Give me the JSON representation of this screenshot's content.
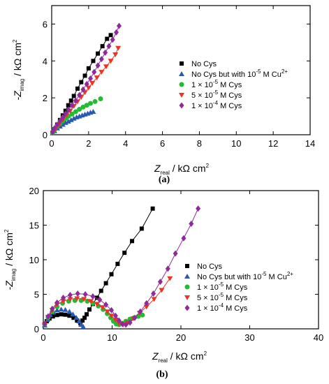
{
  "chart_data": [
    {
      "type": "scatter",
      "panel_label": "(a)",
      "xlabel": "Zreal / kΩ cm2",
      "ylabel": "-Zimag / kΩ cm2",
      "xlim": [
        0,
        14
      ],
      "ylim": [
        0,
        7
      ],
      "xticks": [
        "0",
        "2",
        "4",
        "6",
        "8",
        "10",
        "12",
        "14"
      ],
      "yticks": [
        "0",
        "2",
        "4",
        "6"
      ],
      "legend_position": "right",
      "legend": [
        "No Cys",
        "No Cys but with 10-5 M Cu2+",
        "1 × 10-5 M Cys",
        "5 × 10-5 M Cys",
        "1 × 10-4 M Cys"
      ],
      "series": [
        {
          "name": "No Cys",
          "color": "#000000",
          "marker": "square",
          "line": true,
          "x": [
            0.05,
            0.15,
            0.3,
            0.45,
            0.6,
            0.75,
            0.9,
            1.05,
            1.2,
            1.4,
            1.6,
            1.8,
            2.0,
            2.25,
            2.5,
            2.75,
            3.0,
            3.2
          ],
          "y": [
            0.1,
            0.3,
            0.55,
            0.8,
            1.05,
            1.3,
            1.6,
            1.85,
            2.1,
            2.5,
            2.85,
            3.2,
            3.6,
            4.0,
            4.4,
            4.8,
            5.2,
            5.4
          ]
        },
        {
          "name": "No Cys but with 10-5 M Cu2+",
          "color": "#2a5ab0",
          "marker": "triangle",
          "line": false,
          "x": [
            0.05,
            0.15,
            0.3,
            0.45,
            0.6,
            0.75,
            0.9,
            1.05,
            1.2,
            1.35,
            1.5,
            1.65,
            1.8,
            1.95,
            2.1,
            2.25
          ],
          "y": [
            0.08,
            0.2,
            0.35,
            0.45,
            0.55,
            0.65,
            0.72,
            0.8,
            0.88,
            0.95,
            1.0,
            1.05,
            1.1,
            1.15,
            1.2,
            1.25
          ]
        },
        {
          "name": "1 × 10-5 M Cys",
          "color": "#22bb33",
          "marker": "circle",
          "line": false,
          "x": [
            0.05,
            0.15,
            0.3,
            0.45,
            0.6,
            0.75,
            0.9,
            1.1,
            1.3,
            1.5,
            1.7,
            1.9,
            2.1,
            2.35,
            2.65
          ],
          "y": [
            0.1,
            0.25,
            0.45,
            0.6,
            0.75,
            0.88,
            1.0,
            1.12,
            1.25,
            1.38,
            1.5,
            1.6,
            1.7,
            1.8,
            1.95
          ]
        },
        {
          "name": "5 × 10-5 M Cys",
          "color": "#ee3322",
          "marker": "triangle-down",
          "line": true,
          "x": [
            0.05,
            0.2,
            0.4,
            0.6,
            0.8,
            1.0,
            1.2,
            1.4,
            1.6,
            1.8,
            2.0,
            2.2,
            2.45,
            2.7,
            2.95,
            3.2,
            3.45,
            3.6
          ],
          "y": [
            0.1,
            0.3,
            0.55,
            0.8,
            1.05,
            1.3,
            1.55,
            1.8,
            2.05,
            2.3,
            2.55,
            2.8,
            3.1,
            3.4,
            3.7,
            4.0,
            4.35,
            4.7
          ]
        },
        {
          "name": "1 × 10-4 M Cys",
          "color": "#8e2a9c",
          "marker": "diamond",
          "line": true,
          "x": [
            0.05,
            0.15,
            0.3,
            0.45,
            0.6,
            0.75,
            0.9,
            1.1,
            1.3,
            1.5,
            1.7,
            1.9,
            2.1,
            2.3,
            2.5,
            2.7,
            2.9,
            3.1,
            3.3,
            3.5,
            3.65
          ],
          "y": [
            0.15,
            0.35,
            0.55,
            0.75,
            0.95,
            1.15,
            1.35,
            1.6,
            1.85,
            2.15,
            2.45,
            2.75,
            3.05,
            3.4,
            3.75,
            4.1,
            4.45,
            4.8,
            5.15,
            5.55,
            5.9
          ]
        }
      ]
    },
    {
      "type": "scatter",
      "panel_label": "(b)",
      "xlabel": "Zreal / kΩ cm2",
      "ylabel": "-Zimag / kΩ cm2",
      "xlim": [
        0,
        40
      ],
      "ylim": [
        0,
        20
      ],
      "xticks": [
        "0",
        "10",
        "20",
        "30",
        "40"
      ],
      "yticks": [
        "0",
        "5",
        "10",
        "15",
        "20"
      ],
      "legend_position": "right",
      "legend": [
        "No Cys",
        "No Cys but with 10-5 M Cu2+",
        "1 × 10-5 M Cys",
        "5 × 10-5 M Cys",
        "1 × 10-4 M Cys"
      ],
      "series": [
        {
          "name": "No Cys",
          "color": "#000000",
          "marker": "square",
          "line": true,
          "x": [
            0.2,
            0.5,
            0.9,
            1.4,
            2.0,
            2.6,
            3.2,
            3.8,
            4.4,
            4.9,
            5.4,
            5.7,
            6.0,
            6.3,
            6.7,
            7.2,
            7.8,
            8.4,
            9.1,
            9.9,
            10.8,
            11.8,
            12.9,
            14.3,
            15.9
          ],
          "y": [
            0.5,
            1.1,
            1.5,
            1.8,
            2.0,
            2.1,
            2.05,
            1.9,
            1.6,
            1.2,
            0.8,
            1.2,
            1.6,
            2.1,
            2.8,
            3.6,
            4.5,
            5.5,
            6.6,
            7.9,
            9.4,
            11.0,
            12.7,
            14.5,
            17.4
          ]
        },
        {
          "name": "No Cys but with 10-5 M Cu2+",
          "color": "#2a5ab0",
          "marker": "triangle",
          "line": false,
          "x": [
            0.2,
            0.6,
            1.0,
            1.5,
            2.0,
            2.6,
            3.2,
            3.8,
            4.3,
            4.8,
            5.2,
            5.5,
            5.8
          ],
          "y": [
            0.5,
            1.3,
            2.0,
            2.4,
            2.7,
            2.8,
            2.75,
            2.5,
            2.1,
            1.6,
            1.1,
            0.6,
            0.3
          ]
        },
        {
          "name": "1 × 10-5 M Cys",
          "color": "#22bb33",
          "marker": "circle",
          "line": false,
          "x": [
            0.2,
            0.7,
            1.3,
            2.0,
            2.8,
            3.7,
            4.6,
            5.5,
            6.4,
            7.2,
            8.0,
            8.7,
            9.3,
            9.8,
            10.2,
            10.6,
            11.0,
            11.5,
            12.0,
            12.6,
            13.2,
            13.8,
            14.4
          ],
          "y": [
            0.6,
            1.6,
            2.5,
            3.2,
            3.7,
            4.0,
            4.1,
            4.1,
            4.0,
            3.7,
            3.3,
            2.8,
            2.2,
            1.6,
            1.1,
            0.7,
            0.6,
            0.8,
            1.1,
            1.4,
            1.6,
            1.8,
            2.0
          ]
        },
        {
          "name": "5 × 10-5 M Cys",
          "color": "#ee3322",
          "marker": "triangle-down",
          "line": true,
          "x": [
            0.2,
            0.7,
            1.3,
            2.0,
            2.9,
            3.9,
            4.9,
            5.9,
            6.9,
            7.8,
            8.6,
            9.3,
            9.9,
            10.5,
            11.0,
            11.6,
            12.3,
            13.1,
            14.0,
            15.0,
            16.1,
            17.2,
            18.4
          ],
          "y": [
            0.6,
            1.7,
            2.7,
            3.5,
            4.0,
            4.3,
            4.4,
            4.3,
            4.0,
            3.6,
            3.1,
            2.5,
            1.9,
            1.3,
            0.8,
            0.6,
            0.9,
            1.5,
            2.3,
            3.2,
            4.3,
            5.6,
            7.3
          ]
        },
        {
          "name": "1 × 10-4 M Cys",
          "color": "#8e2a9c",
          "marker": "diamond",
          "line": true,
          "x": [
            0.2,
            0.7,
            1.3,
            2.0,
            2.9,
            3.9,
            5.0,
            6.1,
            7.2,
            8.2,
            9.1,
            9.9,
            10.5,
            11.0,
            11.5,
            12.0,
            12.6,
            13.3,
            14.1,
            15.0,
            16.0,
            17.0,
            18.1,
            19.2,
            20.4,
            21.5,
            22.5
          ],
          "y": [
            0.7,
            1.8,
            2.9,
            3.8,
            4.5,
            4.9,
            5.1,
            5.0,
            4.7,
            4.2,
            3.5,
            2.7,
            1.9,
            1.2,
            0.7,
            0.6,
            0.9,
            1.6,
            2.5,
            3.7,
            5.1,
            6.8,
            8.7,
            10.9,
            13.1,
            15.2,
            17.4
          ]
        }
      ]
    }
  ]
}
